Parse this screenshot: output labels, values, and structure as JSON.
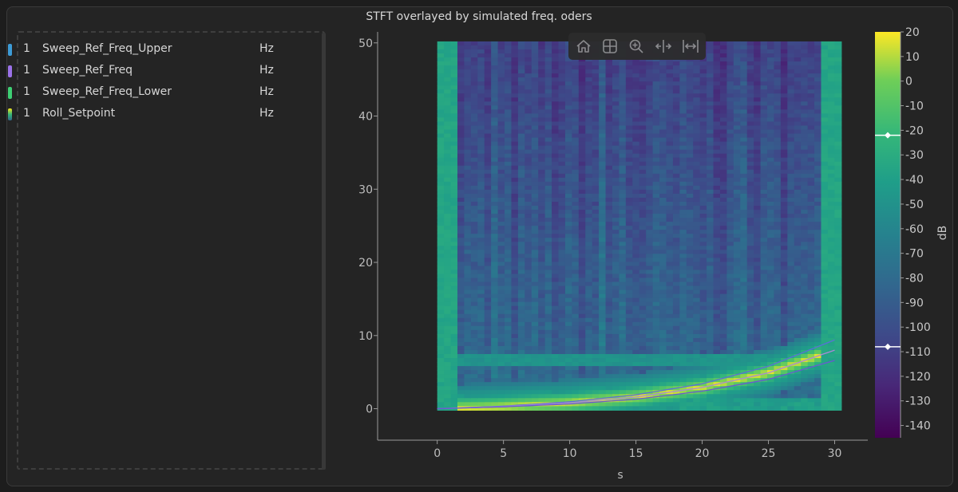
{
  "title": "STFT overlayed by simulated freq. oders",
  "legend": {
    "items": [
      {
        "count": "1",
        "name": "Sweep_Ref_Freq_Upper",
        "unit": "Hz",
        "color": "#3d9bd6"
      },
      {
        "count": "1",
        "name": "Sweep_Ref_Freq",
        "unit": "Hz",
        "color": "#9b72e8"
      },
      {
        "count": "1",
        "name": "Sweep_Ref_Freq_Lower",
        "unit": "Hz",
        "color": "#3ecf74"
      },
      {
        "count": "1",
        "name": "Roll_Setpoint",
        "unit": "Hz",
        "color": "gradient"
      }
    ]
  },
  "toolbar": {
    "buttons": [
      "home-icon",
      "grid-icon",
      "zoom-icon",
      "pan-horizontal-icon",
      "fit-width-icon"
    ]
  },
  "chart_data": {
    "type": "heatmap",
    "title": "STFT overlayed by simulated freq. oders",
    "xlabel": "s",
    "ylabel": "",
    "xlim": [
      -4.5,
      32.5
    ],
    "ylim": [
      -4.3,
      51.5
    ],
    "x_ticks": [
      0,
      5,
      10,
      15,
      20,
      25,
      30
    ],
    "y_ticks": [
      0,
      10,
      20,
      30,
      40,
      50
    ],
    "heatmap_extent": {
      "x": [
        0,
        30.5
      ],
      "y": [
        -0.2,
        50.2
      ]
    },
    "colormap": "viridis",
    "colorbar": {
      "label": "dB",
      "ticks": [
        20,
        10,
        0,
        -10,
        -20,
        -30,
        -40,
        -50,
        -60,
        -70,
        -80,
        -90,
        -100,
        -110,
        -120,
        -130,
        -140
      ],
      "range": [
        -145,
        20
      ],
      "markers": [
        -22,
        -108
      ]
    },
    "series": [
      {
        "name": "Sweep_Ref_Freq_Upper",
        "x": [
          0,
          5,
          10,
          15,
          20,
          25,
          30
        ],
        "y": [
          0.0,
          0.35,
          0.95,
          1.9,
          3.4,
          5.8,
          9.4
        ]
      },
      {
        "name": "Sweep_Ref_Freq",
        "x": [
          0,
          5,
          10,
          15,
          20,
          25,
          30
        ],
        "y": [
          0.0,
          0.3,
          0.8,
          1.6,
          2.9,
          4.9,
          8.0
        ]
      },
      {
        "name": "Sweep_Ref_Freq_Lower",
        "x": [
          0,
          5,
          10,
          15,
          20,
          25,
          30
        ],
        "y": [
          0.0,
          0.25,
          0.65,
          1.3,
          2.4,
          4.0,
          6.6
        ]
      }
    ]
  }
}
